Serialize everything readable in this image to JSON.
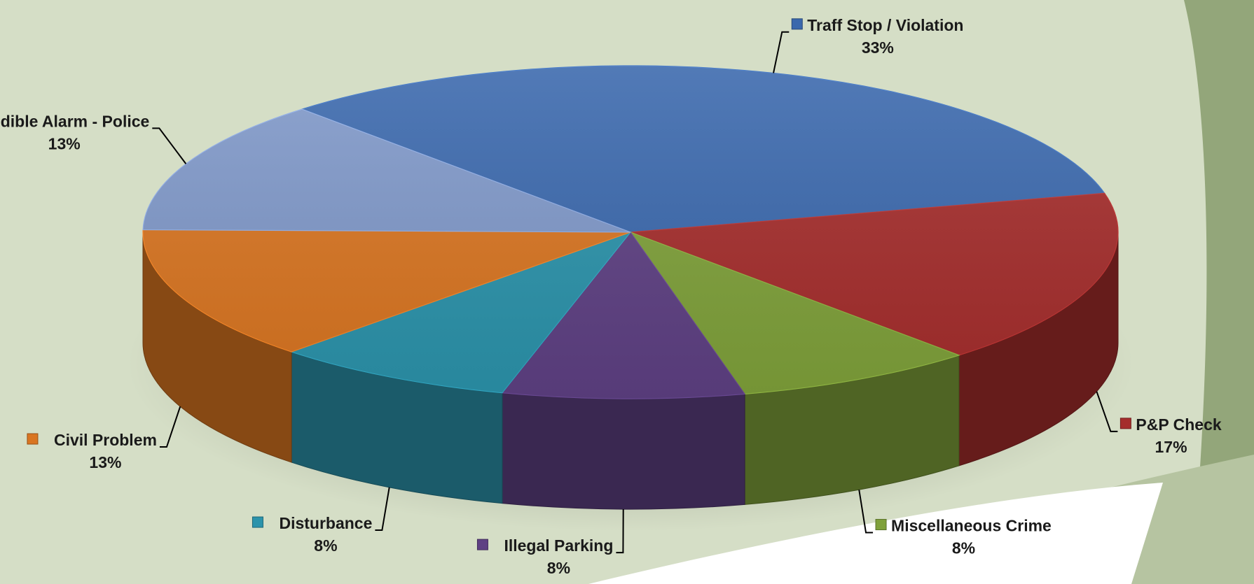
{
  "chart_data": {
    "type": "pie",
    "style": "3d",
    "title": "",
    "legend": "none",
    "data_labels": "outside with leader lines",
    "slices": [
      {
        "label": "Traff Stop / Violation",
        "value": 33,
        "value_label": "33%",
        "color": "#3a68ad"
      },
      {
        "label": "P&P Check",
        "value": 17,
        "value_label": "17%",
        "color": "#a52d2c"
      },
      {
        "label": "Miscellaneous Crime",
        "value": 8,
        "value_label": "8%",
        "color": "#7fa13a"
      },
      {
        "label": "Illegal Parking",
        "value": 8,
        "value_label": "8%",
        "color": "#5e4083"
      },
      {
        "label": "Disturbance",
        "value": 8,
        "value_label": "8%",
        "color": "#2b93ab"
      },
      {
        "label": "Civil Problem",
        "value": 13,
        "value_label": "13%",
        "color": "#d97521"
      },
      {
        "label": "Audible Alarm - Police",
        "value": 13,
        "value_label": "13%",
        "color": "#7f98c9"
      }
    ]
  }
}
